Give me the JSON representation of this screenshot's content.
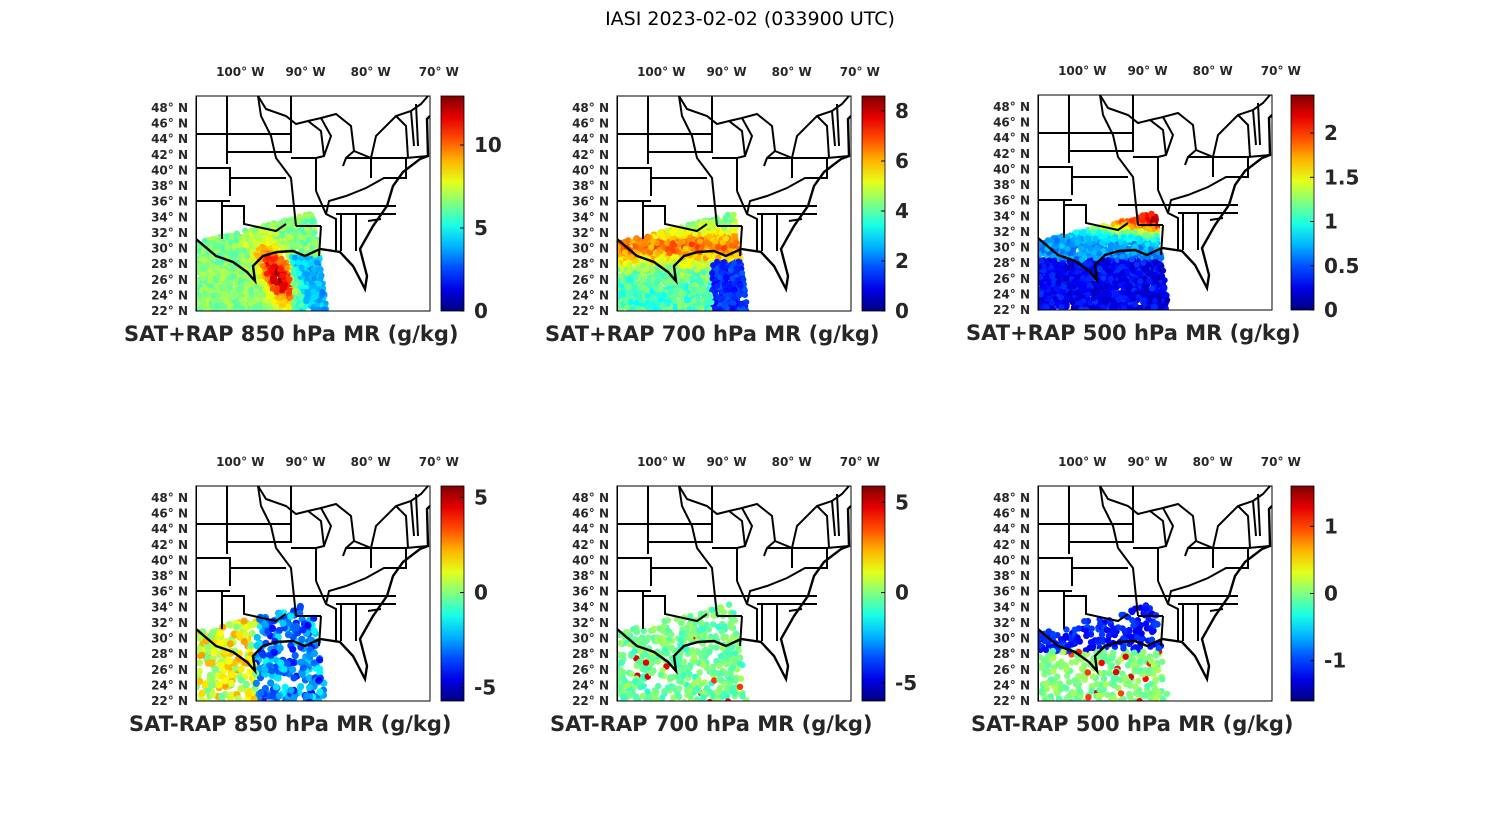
{
  "figure_title": "IASI 2023-02-02 (033900 UTC)",
  "lon_ticks": [
    {
      "value": -100,
      "label": "100",
      "hemi": "W"
    },
    {
      "value": -90,
      "label": "90",
      "hemi": "W"
    },
    {
      "value": -80,
      "label": "80",
      "hemi": "W"
    },
    {
      "value": -70,
      "label": "70",
      "hemi": "W"
    }
  ],
  "lat_ticks": [
    48,
    46,
    44,
    42,
    40,
    38,
    36,
    34,
    32,
    30,
    28,
    26,
    24,
    22
  ],
  "lat_hemi": "N",
  "degree_symbol": "°",
  "colormap": "jet",
  "panels": [
    {
      "title": "SAT+RAP 850 hPa MR (g/kg)",
      "clim": [
        0,
        12.95
      ],
      "cticks": [
        "0",
        "5",
        "10"
      ],
      "kind": "total",
      "level": 850
    },
    {
      "title": "SAT+RAP 700 hPa MR (g/kg)",
      "clim": [
        0,
        8.6
      ],
      "cticks": [
        "0",
        "2",
        "4",
        "6",
        "8"
      ],
      "kind": "total",
      "level": 700
    },
    {
      "title": "SAT+RAP 500 hPa MR (g/kg)",
      "clim": [
        0,
        2.43
      ],
      "cticks": [
        "0",
        "0.5",
        "1",
        "1.5",
        "2"
      ],
      "kind": "total",
      "level": 500
    },
    {
      "title": "SAT-RAP 850 hPa MR (g/kg)",
      "clim": [
        -5.7,
        5.6
      ],
      "cticks": [
        "-5",
        "0",
        "5"
      ],
      "kind": "diff",
      "level": 850
    },
    {
      "title": "SAT-RAP 700 hPa MR (g/kg)",
      "clim": [
        -6.0,
        5.9
      ],
      "cticks": [
        "-5",
        "0",
        "5"
      ],
      "kind": "diff",
      "level": 700
    },
    {
      "title": "SAT-RAP 500 hPa MR (g/kg)",
      "clim": [
        -1.6,
        1.6
      ],
      "cticks": [
        "-1",
        "0",
        "1"
      ],
      "kind": "diff",
      "level": 500
    }
  ]
}
